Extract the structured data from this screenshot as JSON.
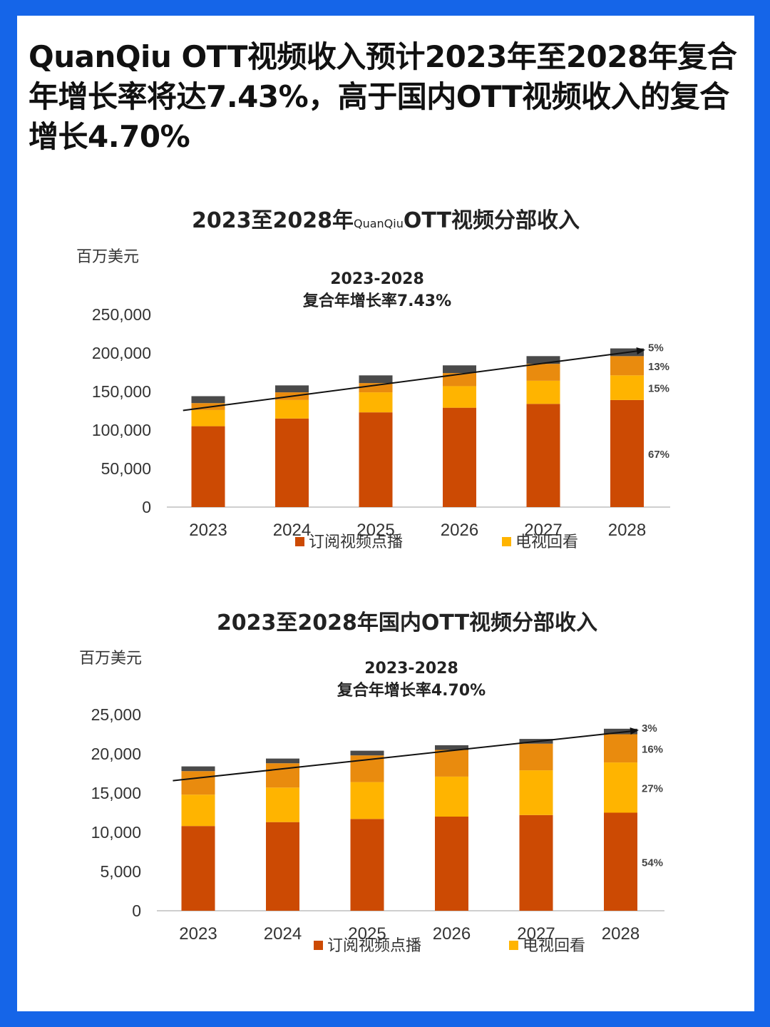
{
  "headline": "QuanQiu OTT视频收入预计2023年至2028年复合年增长率将达7.43%，高于国内OTT视频收入的复合增长4.70%",
  "colors": {
    "page_border": "#1565e8",
    "svod": "#cc4a03",
    "tv_replay": "#ffb400",
    "segment3": "#e98b0e",
    "segment4": "#4a4a4a",
    "trend_line": "#111111"
  },
  "chart_data": [
    {
      "type": "bar",
      "stacked": true,
      "title": "2023至2028年QuanQiuOTT视频分部收入",
      "title_main_1": "2023至2028年",
      "title_small": "QuanQiu",
      "title_main_2": "OTT视频分部收入",
      "unit_label": "百万美元",
      "cagr_period": "2023-2028",
      "cagr_text": "复合年增长率7.43%",
      "categories": [
        "2023",
        "2024",
        "2025",
        "2026",
        "2027",
        "2028"
      ],
      "ylim": [
        0,
        250000
      ],
      "yticks": [
        "0",
        "50,000",
        "100,000",
        "150,000",
        "200,000",
        "250,000"
      ],
      "series": [
        {
          "name": "订阅视频点播",
          "values": [
            105000,
            115000,
            123000,
            129000,
            134000,
            139000
          ]
        },
        {
          "name": "电视回看",
          "values": [
            21000,
            24000,
            26000,
            28000,
            30000,
            32000
          ]
        },
        {
          "values": [
            9000,
            10000,
            12000,
            17000,
            22000,
            25000
          ]
        },
        {
          "values": [
            9000,
            9000,
            10000,
            10000,
            10000,
            10000
          ]
        }
      ],
      "share_labels": [
        "5%",
        "13%",
        "15%",
        "67%"
      ],
      "trend_line": true,
      "legend": [
        "订阅视频点播",
        "电视回看"
      ]
    },
    {
      "type": "bar",
      "stacked": true,
      "title": "2023至2028年国内OTT视频分部收入",
      "unit_label": "百万美元",
      "cagr_period": "2023-2028",
      "cagr_text": "复合年增长率4.70%",
      "categories": [
        "2023",
        "2024",
        "2025",
        "2026",
        "2027",
        "2028"
      ],
      "ylim": [
        0,
        25000
      ],
      "yticks": [
        "0",
        "5,000",
        "10,000",
        "15,000",
        "20,000",
        "25,000"
      ],
      "series": [
        {
          "name": "订阅视频点播",
          "values": [
            10800,
            11300,
            11700,
            12000,
            12200,
            12500
          ]
        },
        {
          "name": "电视回看",
          "values": [
            4000,
            4400,
            4700,
            5100,
            5700,
            6400
          ]
        },
        {
          "values": [
            3000,
            3100,
            3400,
            3400,
            3400,
            3600
          ]
        },
        {
          "values": [
            600,
            600,
            600,
            600,
            600,
            700
          ]
        }
      ],
      "share_labels": [
        "3%",
        "16%",
        "27%",
        "54%"
      ],
      "trend_line": true,
      "legend": [
        "订阅视频点播",
        "电视回看"
      ]
    }
  ]
}
